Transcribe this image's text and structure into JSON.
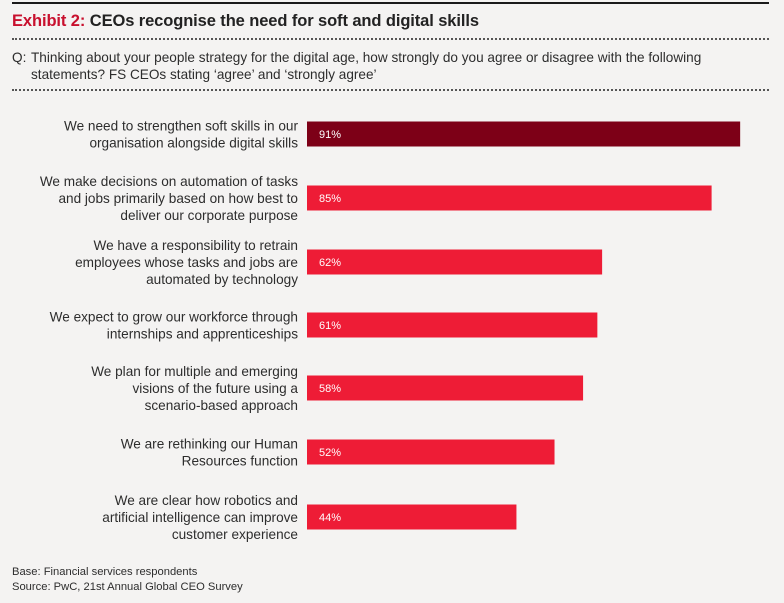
{
  "header": {
    "exhibit_label": "Exhibit 2:",
    "title_text": " CEOs recognise the need for soft and digital skills",
    "question_prefix": "Q:",
    "question_text": "Thinking about your people strategy for the digital age, how strongly do you agree or disagree with the following statements? FS CEOs stating ‘agree’ and ‘strongly agree’"
  },
  "colors": {
    "accent_red": "#c8102e",
    "highlight_bar": "#7d0017",
    "bar": "#ee1c36",
    "background": "#f4f3f2",
    "bar_label": "#ffffff"
  },
  "chart_data": {
    "type": "bar",
    "orientation": "horizontal",
    "title": "Exhibit 2: CEOs recognise the need for soft and digital skills",
    "xlabel": "",
    "ylabel": "",
    "xlim": [
      0,
      100
    ],
    "grid": false,
    "legend": "none",
    "unit": "%",
    "categories": [
      [
        "We need to strengthen soft skills in our",
        "organisation alongside digital skills"
      ],
      [
        "We make decisions on automation of tasks",
        "and jobs primarily based on how best to",
        "deliver our corporate purpose"
      ],
      [
        "We have a responsibility to retrain",
        "employees whose tasks and jobs are",
        "automated by technology"
      ],
      [
        "We expect to grow our workforce through",
        "internships and apprenticeships"
      ],
      [
        "We plan for multiple and emerging",
        "visions of the future using a",
        "scenario-based approach"
      ],
      [
        "We are rethinking our Human",
        "Resources function"
      ],
      [
        "We are clear how robotics and",
        "artificial intelligence can improve",
        "customer experience"
      ]
    ],
    "values": [
      91,
      85,
      62,
      61,
      58,
      52,
      44
    ],
    "data_labels": [
      "91%",
      "85%",
      "62%",
      "61%",
      "58%",
      "52%",
      "44%"
    ],
    "highlighted_index": 0
  },
  "footer": {
    "base": "Base: Financial services respondents",
    "source": "Source: PwC, 21st Annual Global CEO Survey"
  }
}
